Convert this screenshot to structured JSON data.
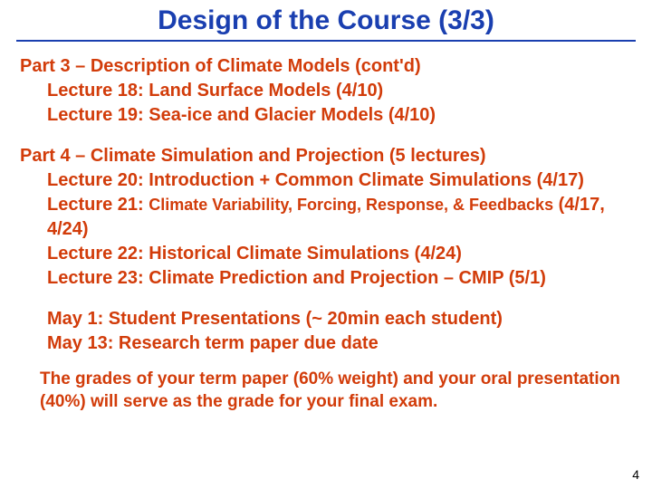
{
  "colors": {
    "title_color": "#1a3fb0",
    "underline_color": "#1a3fb0",
    "text_color": "#d23c0a",
    "notes_color": "#d23c0a",
    "grades_color": "#d23c0a",
    "pagenum_color": "#000000"
  },
  "sizes": {
    "title_fontsize": 30,
    "heading_fontsize": 20,
    "lecture_fontsize": 20,
    "lecture_small_fontsize": 18,
    "notes_fontsize": 20,
    "grades_fontsize": 19
  },
  "title": "Design of the Course (3/3)",
  "part3": {
    "heading": "Part 3 – Description of Climate Models (cont'd)",
    "lectures": [
      "Lecture 18: Land Surface Models (4/10)",
      "Lecture 19: Sea-ice and Glacier Models (4/10)"
    ]
  },
  "part4": {
    "heading": "Part 4 – Climate Simulation and Projection (5 lectures)",
    "lectures": [
      {
        "lg": "Lecture 20: Introduction + Common Climate Simulations (4/17)"
      },
      {
        "lg_prefix": "Lecture 21: ",
        "sm": "Climate Variability, Forcing, Response, & Feedbacks",
        "lg_suffix": " (4/17, 4/24)"
      },
      {
        "lg": "Lecture 22: Historical Climate Simulations (4/24)"
      },
      {
        "lg": "Lecture 23: Climate Prediction and Projection – CMIP (5/1)"
      }
    ]
  },
  "notes": [
    "May 1: Student Presentations (~ 20min each student)",
    "May 13: Research term paper due date"
  ],
  "grades": [
    "The grades of your term paper (60% weight) and your oral presentation",
    " (40%) will serve as the grade for your final exam."
  ],
  "pagenum": "4"
}
